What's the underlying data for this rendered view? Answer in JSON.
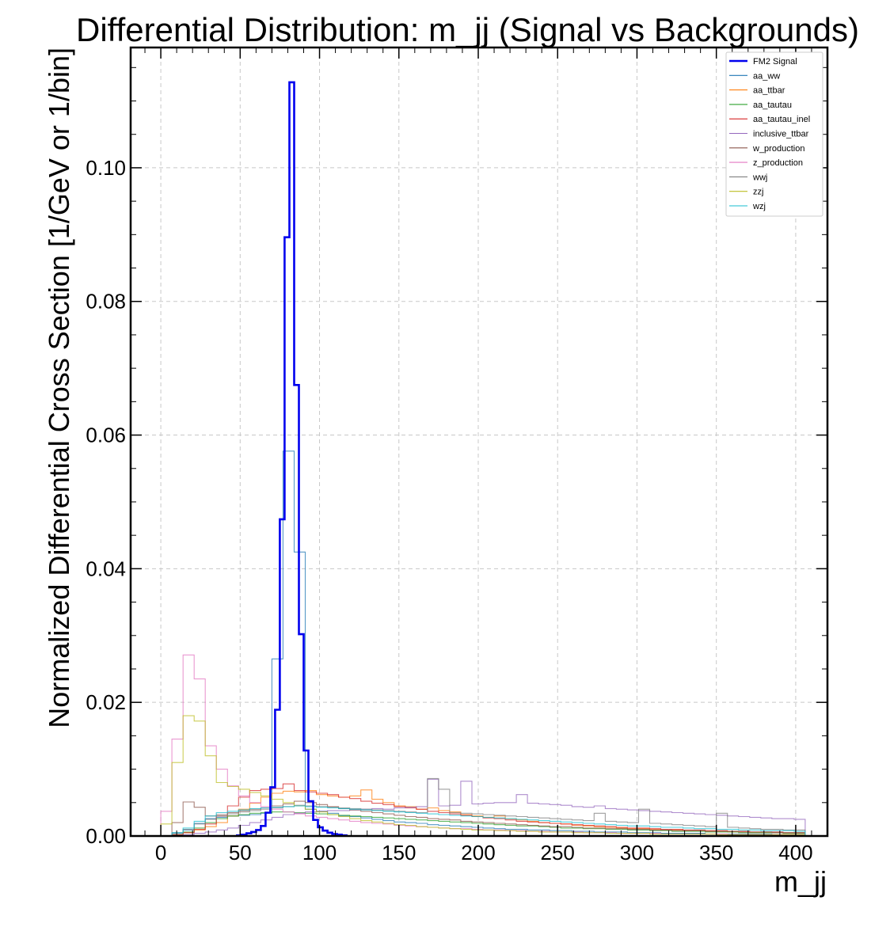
{
  "chart_data": {
    "type": "histogram-step",
    "title": "Differential Distribution: m_jj (Signal vs Backgrounds)",
    "xlabel": "m_jj",
    "ylabel": "Normalized Differential Cross Section [1/GeV or 1/bin]",
    "xlim": [
      -19,
      420
    ],
    "ylim": [
      0,
      0.118
    ],
    "xticks": [
      0,
      50,
      100,
      150,
      200,
      250,
      300,
      350,
      400
    ],
    "xtick_labels": [
      "0",
      "50",
      "100",
      "150",
      "200",
      "250",
      "300",
      "350",
      "400"
    ],
    "yticks": [
      0,
      0.02,
      0.04,
      0.06,
      0.08,
      0.1
    ],
    "ytick_labels": [
      "0.00",
      "0.02",
      "0.04",
      "0.06",
      "0.08",
      "0.10"
    ],
    "grid": true,
    "legend_position": "top-right",
    "series": [
      {
        "name": "FM2 Signal",
        "color": "#0000ee",
        "bin_width": 3,
        "x_start": 48,
        "values": [
          0.0001,
          0.0002,
          0.0004,
          0.0006,
          0.0009,
          0.0015,
          0.0035,
          0.0073,
          0.0189,
          0.0474,
          0.0896,
          0.1128,
          0.0675,
          0.0302,
          0.0128,
          0.0052,
          0.0024,
          0.0013,
          0.0008,
          0.0005,
          0.0003,
          0.0002,
          0.0001
        ]
      },
      {
        "name": "aa_ww",
        "color": "#1f77b4",
        "bin_width": 7,
        "x_start": 7,
        "values": [
          0.0004,
          0.0009,
          0.0019,
          0.0026,
          0.0028,
          0.003,
          0.0031,
          0.0032,
          0.0034,
          0.0265,
          0.0576,
          0.0425,
          0.004,
          0.0037,
          0.0034,
          0.003,
          0.0029,
          0.0027,
          0.0025,
          0.0023,
          0.0021,
          0.002,
          0.0019,
          0.0017,
          0.0016,
          0.0015,
          0.0014,
          0.0013,
          0.0012,
          0.0011,
          0.001,
          0.001,
          0.0009,
          0.0009,
          0.0008,
          0.0008,
          0.0007,
          0.0007,
          0.0006,
          0.0006,
          0.0006,
          0.0005,
          0.0005,
          0.0005,
          0.0004,
          0.0004,
          0.0004,
          0.0004,
          0.0003,
          0.0003,
          0.0003,
          0.0003,
          0.0003,
          0.0003,
          0.0002,
          0.0002,
          0.0002
        ]
      },
      {
        "name": "aa_ttbar",
        "color": "#ff7f0e",
        "bin_width": 7,
        "x_start": 7,
        "values": [
          0.0002,
          0.0005,
          0.0009,
          0.0014,
          0.002,
          0.003,
          0.004,
          0.0049,
          0.0058,
          0.0064,
          0.0067,
          0.0066,
          0.0068,
          0.0062,
          0.006,
          0.0058,
          0.006,
          0.0069,
          0.0055,
          0.005,
          0.0045,
          0.0044,
          0.004,
          0.0042,
          0.0038,
          0.0036,
          0.0032,
          0.003,
          0.0028,
          0.003,
          0.0026,
          0.0024,
          0.0022,
          0.002,
          0.0019,
          0.0018,
          0.0016,
          0.0015,
          0.0014,
          0.0013,
          0.0012,
          0.0011,
          0.0011,
          0.001,
          0.0009,
          0.0009,
          0.0008,
          0.0008,
          0.0007,
          0.0007,
          0.0006,
          0.0006,
          0.0005,
          0.0005,
          0.0005,
          0.0004,
          0.0004
        ]
      },
      {
        "name": "aa_tautau",
        "color": "#2ca02c",
        "bin_width": 7,
        "x_start": 7,
        "values": [
          0.0002,
          0.0006,
          0.0012,
          0.002,
          0.0026,
          0.003,
          0.0032,
          0.0034,
          0.0035,
          0.0036,
          0.0036,
          0.0035,
          0.0034,
          0.0033,
          0.0032,
          0.0031,
          0.003,
          0.0029,
          0.0028,
          0.0027,
          0.0026,
          0.0025,
          0.0024,
          0.0023,
          0.0022,
          0.0021,
          0.002,
          0.0019,
          0.0018,
          0.0017,
          0.0016,
          0.0015,
          0.0015,
          0.0014,
          0.0013,
          0.0012,
          0.0012,
          0.0011,
          0.0011,
          0.001,
          0.001,
          0.0009,
          0.0009,
          0.0008,
          0.0008,
          0.0007,
          0.0007,
          0.0007,
          0.0006,
          0.0006,
          0.0006,
          0.0005,
          0.0005,
          0.0005,
          0.0005,
          0.0004,
          0.0004
        ]
      },
      {
        "name": "aa_tautau_inel",
        "color": "#d62728",
        "bin_width": 7,
        "x_start": 7,
        "values": [
          0.0002,
          0.0005,
          0.001,
          0.0018,
          0.003,
          0.0045,
          0.0058,
          0.0068,
          0.007,
          0.0071,
          0.0078,
          0.0068,
          0.0066,
          0.0064,
          0.0062,
          0.0058,
          0.0056,
          0.0052,
          0.0049,
          0.0047,
          0.0044,
          0.0042,
          0.004,
          0.0037,
          0.0035,
          0.0033,
          0.0031,
          0.0029,
          0.0027,
          0.0026,
          0.0024,
          0.0022,
          0.0021,
          0.002,
          0.0019,
          0.0018,
          0.0017,
          0.0016,
          0.0015,
          0.0014,
          0.0013,
          0.0012,
          0.0012,
          0.0011,
          0.001,
          0.001,
          0.0009,
          0.0009,
          0.0008,
          0.0008,
          0.0007,
          0.0007,
          0.0006,
          0.0006,
          0.0006,
          0.0005,
          0.0005
        ]
      },
      {
        "name": "inclusive_ttbar",
        "color": "#9467bd",
        "bin_width": 7,
        "x_start": 7,
        "values": [
          0.0001,
          0.0002,
          0.0004,
          0.0006,
          0.0009,
          0.0012,
          0.0016,
          0.002,
          0.0024,
          0.0028,
          0.0032,
          0.0034,
          0.0036,
          0.0037,
          0.0038,
          0.0038,
          0.0039,
          0.004,
          0.0041,
          0.004,
          0.0042,
          0.0043,
          0.0044,
          0.0085,
          0.0045,
          0.0046,
          0.0082,
          0.0048,
          0.0049,
          0.005,
          0.005,
          0.0062,
          0.0049,
          0.0048,
          0.0047,
          0.0046,
          0.0044,
          0.0043,
          0.0045,
          0.0041,
          0.004,
          0.0039,
          0.0038,
          0.0037,
          0.0036,
          0.0035,
          0.0034,
          0.0033,
          0.0032,
          0.0031,
          0.003,
          0.0029,
          0.0028,
          0.0027,
          0.0026,
          0.0026,
          0.0025
        ]
      },
      {
        "name": "w_production",
        "color": "#8c564b",
        "bin_width": 7,
        "x_start": 7,
        "values": [
          0.002,
          0.0051,
          0.0043,
          0.003,
          0.0032,
          0.0035,
          0.0038,
          0.004,
          0.0042,
          0.0045,
          0.0048,
          0.0052,
          0.005,
          0.0047,
          0.0044,
          0.0041,
          0.0039,
          0.0037,
          0.0035,
          0.0033,
          0.0031,
          0.0029,
          0.0028,
          0.0026,
          0.0025,
          0.0024,
          0.0022,
          0.0021,
          0.002,
          0.0019,
          0.0018,
          0.0017,
          0.0016,
          0.0015,
          0.0014,
          0.0014,
          0.0013,
          0.0012,
          0.0012,
          0.0011,
          0.0011,
          0.001,
          0.001,
          0.0009,
          0.0009,
          0.0008,
          0.0008,
          0.0008,
          0.0007,
          0.0007,
          0.0007,
          0.0006,
          0.0006,
          0.0006,
          0.0005,
          0.0005,
          0.0005
        ]
      },
      {
        "name": "z_production",
        "color": "#e377c2",
        "bin_width": 7,
        "x_start": 0,
        "values": [
          0.0037,
          0.0145,
          0.0271,
          0.0235,
          0.0135,
          0.01,
          0.0075,
          0.006,
          0.005,
          0.0044,
          0.004,
          0.0036,
          0.0033,
          0.003,
          0.0028,
          0.0026,
          0.0024,
          0.0022,
          0.002,
          0.0019,
          0.0018,
          0.0016,
          0.0015,
          0.0014,
          0.0013,
          0.0012,
          0.0011,
          0.0011,
          0.001,
          0.0009,
          0.0009,
          0.0008,
          0.0008,
          0.0007,
          0.0007,
          0.0006,
          0.0006,
          0.0006,
          0.0005,
          0.0005,
          0.0005,
          0.0004,
          0.0004,
          0.0004,
          0.0004,
          0.0003,
          0.0003,
          0.0003,
          0.0003,
          0.0003,
          0.0003,
          0.0002,
          0.0002,
          0.0002,
          0.0002,
          0.0002,
          0.0002,
          0.0002
        ]
      },
      {
        "name": "wwj",
        "color": "#7f7f7f",
        "bin_width": 7,
        "x_start": 7,
        "values": [
          0.0005,
          0.001,
          0.0018,
          0.0025,
          0.003,
          0.0033,
          0.0036,
          0.0038,
          0.004,
          0.0042,
          0.0044,
          0.0046,
          0.0045,
          0.0044,
          0.0043,
          0.0042,
          0.0041,
          0.004,
          0.0039,
          0.0038,
          0.0037,
          0.0036,
          0.0035,
          0.0086,
          0.007,
          0.0035,
          0.0034,
          0.0033,
          0.0032,
          0.0031,
          0.003,
          0.0029,
          0.0028,
          0.0027,
          0.0026,
          0.0025,
          0.0024,
          0.0023,
          0.0034,
          0.0022,
          0.0021,
          0.002,
          0.004,
          0.0019,
          0.0018,
          0.0017,
          0.0016,
          0.0015,
          0.0014,
          0.0034,
          0.0013,
          0.0012,
          0.0011,
          0.001,
          0.001,
          0.0009,
          0.0009
        ]
      },
      {
        "name": "zzj",
        "color": "#bcbd22",
        "bin_width": 7,
        "x_start": 0,
        "values": [
          0.0018,
          0.011,
          0.018,
          0.0172,
          0.012,
          0.008,
          0.0074,
          0.007,
          0.0065,
          0.006,
          0.0055,
          0.005,
          0.0045,
          0.004,
          0.0036,
          0.0032,
          0.0029,
          0.0026,
          0.0023,
          0.0021,
          0.0019,
          0.0017,
          0.0016,
          0.0014,
          0.0013,
          0.0012,
          0.0011,
          0.001,
          0.0009,
          0.0009,
          0.0008,
          0.0008,
          0.0007,
          0.0007,
          0.0006,
          0.0006,
          0.0006,
          0.0005,
          0.0005,
          0.0005,
          0.0004,
          0.0004,
          0.0004,
          0.0004,
          0.0003,
          0.0003,
          0.0003,
          0.0003,
          0.0003,
          0.0003,
          0.0002,
          0.0002,
          0.0002,
          0.0002,
          0.0002,
          0.0002,
          0.0002,
          0.0002
        ]
      },
      {
        "name": "wzj",
        "color": "#17becf",
        "bin_width": 7,
        "x_start": 7,
        "values": [
          0.0005,
          0.0012,
          0.0022,
          0.003,
          0.0035,
          0.0037,
          0.0039,
          0.0041,
          0.0042,
          0.0043,
          0.0044,
          0.0045,
          0.0044,
          0.0043,
          0.0042,
          0.0041,
          0.004,
          0.0039,
          0.0038,
          0.0037,
          0.0036,
          0.0035,
          0.0034,
          0.0033,
          0.0032,
          0.0031,
          0.003,
          0.0029,
          0.0028,
          0.0027,
          0.0026,
          0.0025,
          0.0024,
          0.0023,
          0.0022,
          0.0021,
          0.002,
          0.0019,
          0.0018,
          0.0017,
          0.0016,
          0.0015,
          0.0015,
          0.0014,
          0.0013,
          0.0013,
          0.0012,
          0.0011,
          0.0011,
          0.001,
          0.001,
          0.0009,
          0.0009,
          0.0008,
          0.0008,
          0.0008,
          0.0007
        ]
      }
    ]
  }
}
